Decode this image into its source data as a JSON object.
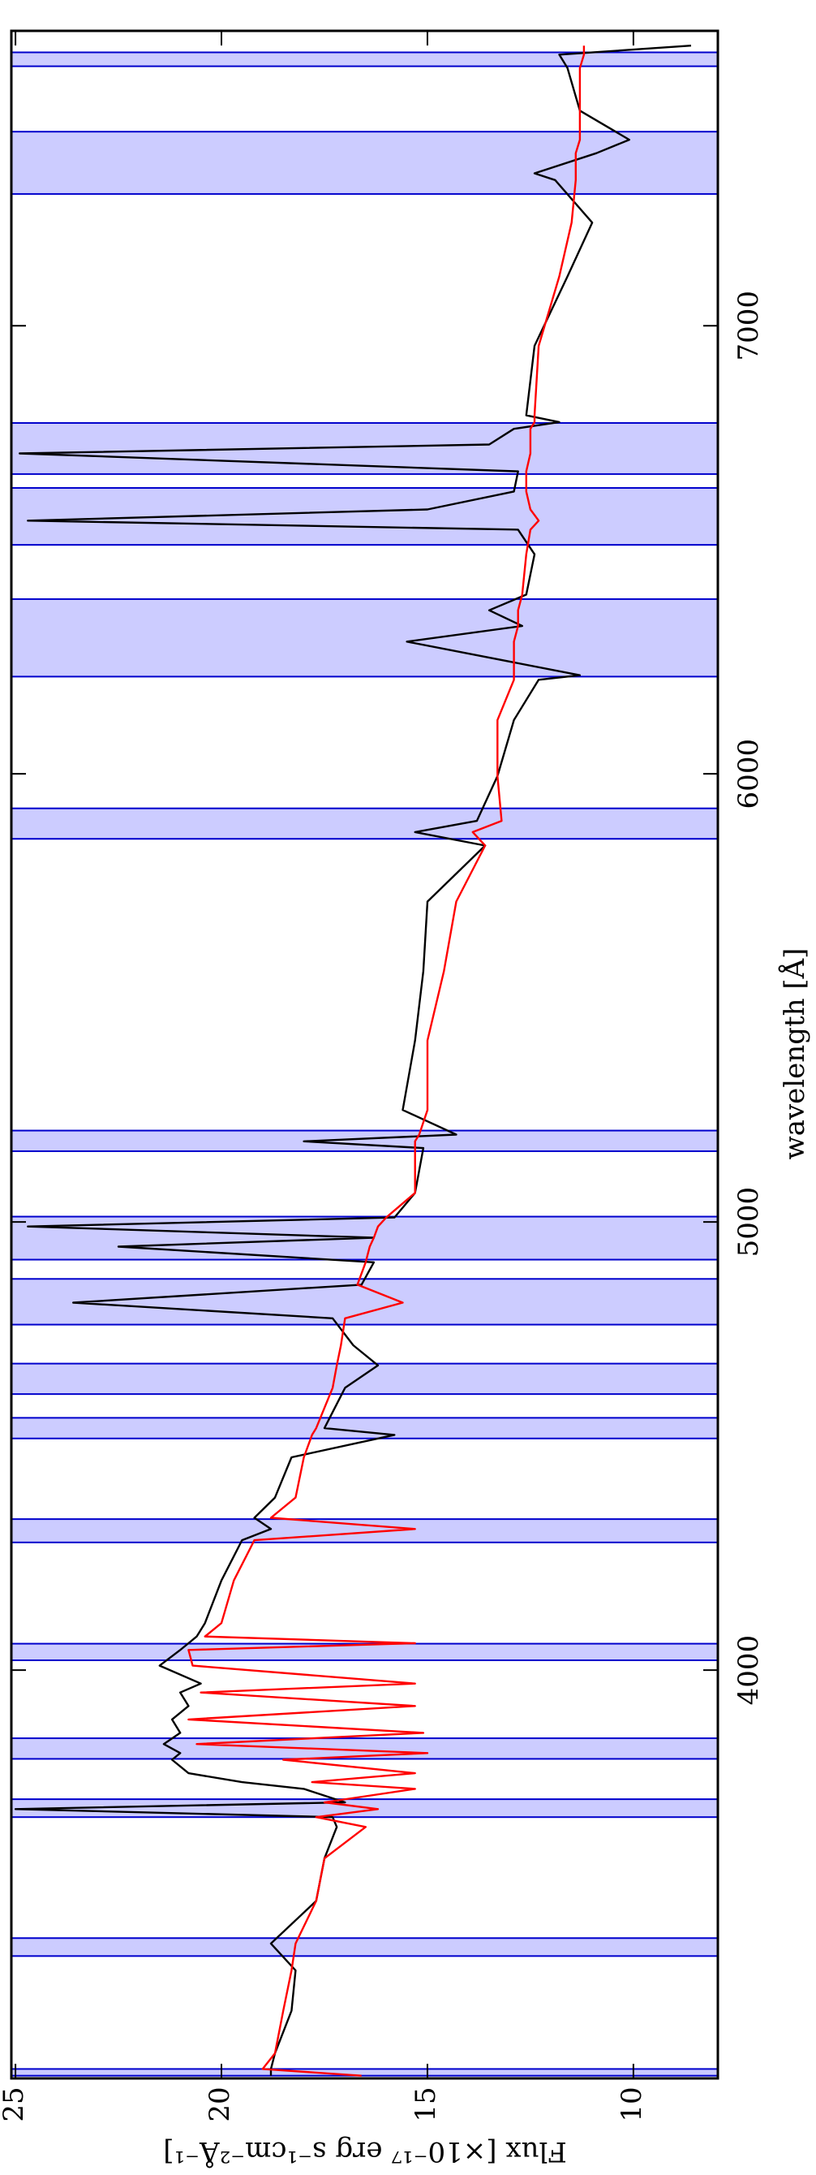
{
  "chart_data": {
    "type": "line",
    "xlabel": "wavelength [Å]",
    "ylabel": "Flux [×10⁻¹⁷ erg s⁻¹cm⁻²Å⁻¹]",
    "xlim": [
      3089,
      7658
    ],
    "xticks": [
      4000,
      5000,
      6000,
      7000
    ],
    "ylim": [
      7.95,
      25.1
    ],
    "yticks": [
      10,
      15,
      20,
      25
    ],
    "shaded_color": "#ccccff",
    "shaded_edge_color": "#0000cc",
    "shaded_regions": [
      [
        3095,
        3110
      ],
      [
        3362,
        3402
      ],
      [
        3672,
        3712
      ],
      [
        3802,
        3848
      ],
      [
        4022,
        4059
      ],
      [
        4285,
        4337
      ],
      [
        4517,
        4563
      ],
      [
        4616,
        4684
      ],
      [
        4771,
        4873
      ],
      [
        4916,
        5012
      ],
      [
        5158,
        5204
      ],
      [
        5855,
        5923
      ],
      [
        6217,
        6390
      ],
      [
        6511,
        6638
      ],
      [
        6669,
        6783
      ],
      [
        7294,
        7433
      ],
      [
        7579,
        7610
      ]
    ],
    "x": [
      3095,
      3110,
      3145,
      3240,
      3330,
      3390,
      3485,
      3580,
      3650,
      3672,
      3690,
      3705,
      3735,
      3750,
      3770,
      3800,
      3815,
      3835,
      3860,
      3890,
      3920,
      3950,
      3970,
      4010,
      4045,
      4060,
      4075,
      4105,
      4200,
      4290,
      4315,
      4340,
      4385,
      4475,
      4525,
      4540,
      4630,
      4680,
      4725,
      4785,
      4820,
      4860,
      4910,
      4945,
      4965,
      4990,
      5010,
      5065,
      5165,
      5180,
      5195,
      5250,
      5405,
      5560,
      5715,
      5840,
      5870,
      5895,
      5995,
      6120,
      6210,
      6220,
      6295,
      6330,
      6365,
      6400,
      6490,
      6545,
      6565,
      6590,
      6630,
      6675,
      6715,
      6735,
      6770,
      6785,
      6800,
      6955,
      7110,
      7230,
      7325,
      7340,
      7385,
      7415,
      7480,
      7575,
      7605,
      7625
    ],
    "series": [
      {
        "color": "#000000",
        "values": [
          18.8,
          18.8,
          18.7,
          18.3,
          18.2,
          18.8,
          17.7,
          17.5,
          17.2,
          17.3,
          25.0,
          17.0,
          18.0,
          19.5,
          20.8,
          21.2,
          21.0,
          21.4,
          21.0,
          21.2,
          20.8,
          21.0,
          20.5,
          21.5,
          21.0,
          20.8,
          20.6,
          20.4,
          20.0,
          19.5,
          18.8,
          19.2,
          18.7,
          18.3,
          15.8,
          17.5,
          17.0,
          16.2,
          16.8,
          17.3,
          23.6,
          16.6,
          16.3,
          22.5,
          16.3,
          24.7,
          15.8,
          15.3,
          15.1,
          18.0,
          14.3,
          15.6,
          15.3,
          15.1,
          15.0,
          13.6,
          15.3,
          13.8,
          13.3,
          12.9,
          12.3,
          11.3,
          15.5,
          12.7,
          13.5,
          12.6,
          12.4,
          12.8,
          24.7,
          15.0,
          12.9,
          12.8,
          24.9,
          13.5,
          12.9,
          11.8,
          12.6,
          12.4,
          11.6,
          11.0,
          11.9,
          12.4,
          10.9,
          10.1,
          11.3,
          11.6,
          11.8,
          8.6
        ]
      },
      {
        "color": "#ff0000",
        "values": [
          16.6,
          19.0,
          18.7,
          18.5,
          18.3,
          18.2,
          17.7,
          17.5,
          16.5,
          17.7,
          16.2,
          17.5,
          15.3,
          17.8,
          15.3,
          18.5,
          15.0,
          20.6,
          15.1,
          20.8,
          15.3,
          20.5,
          15.3,
          20.7,
          20.8,
          15.3,
          20.4,
          20.0,
          19.7,
          19.2,
          15.3,
          18.8,
          18.2,
          18.0,
          17.8,
          17.7,
          17.3,
          17.2,
          17.1,
          17.0,
          15.6,
          16.7,
          16.5,
          16.4,
          16.3,
          16.2,
          16.0,
          15.3,
          15.3,
          15.3,
          15.2,
          15.0,
          15.0,
          14.6,
          14.3,
          13.6,
          13.9,
          13.2,
          13.3,
          13.3,
          12.9,
          12.9,
          12.9,
          12.8,
          12.8,
          12.7,
          12.6,
          12.5,
          12.3,
          12.5,
          12.6,
          12.6,
          12.5,
          12.5,
          12.5,
          12.4,
          12.4,
          12.3,
          11.8,
          11.5,
          11.4,
          11.4,
          11.4,
          11.3,
          11.3,
          11.3,
          11.2,
          11.2
        ]
      }
    ]
  }
}
